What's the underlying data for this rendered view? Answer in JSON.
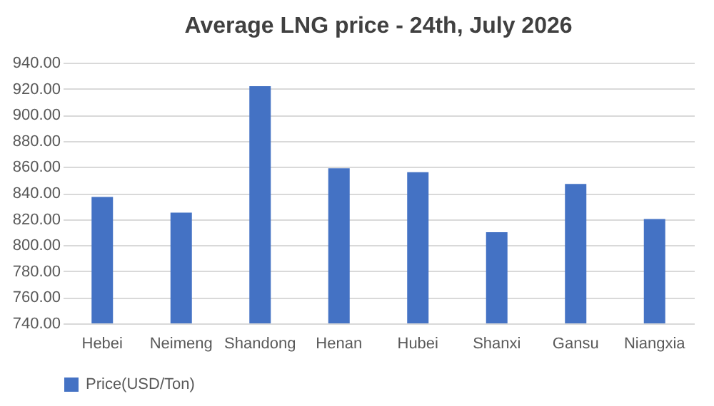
{
  "chart_data": {
    "type": "bar",
    "title": "Average LNG price - 24th, July 2026",
    "categories": [
      "Hebei",
      "Neimeng",
      "Shandong",
      "Henan",
      "Hubei",
      "Shanxi",
      "Gansu",
      "Niangxia"
    ],
    "series": [
      {
        "name": "Price(USD/Ton)",
        "color": "#4472c4",
        "values": [
          837,
          825,
          922,
          859,
          856,
          810,
          847,
          820
        ]
      }
    ],
    "ylim": [
      740,
      940
    ],
    "yticks": [
      {
        "value": 740,
        "label": "740.00"
      },
      {
        "value": 760,
        "label": "760.00"
      },
      {
        "value": 780,
        "label": "780.00"
      },
      {
        "value": 800,
        "label": "800.00"
      },
      {
        "value": 820,
        "label": "820.00"
      },
      {
        "value": 840,
        "label": "840.00"
      },
      {
        "value": 860,
        "label": "860.00"
      },
      {
        "value": 880,
        "label": "880.00"
      },
      {
        "value": 900,
        "label": "900.00"
      },
      {
        "value": 920,
        "label": "920.00"
      },
      {
        "value": 940,
        "label": "940.00"
      }
    ],
    "grid": "y",
    "legend": "bottom"
  }
}
